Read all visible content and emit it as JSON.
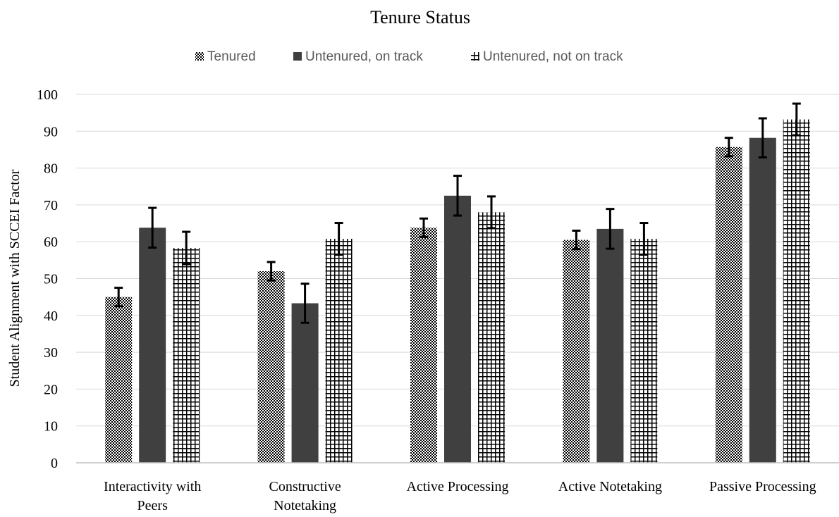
{
  "chart_data": {
    "type": "bar",
    "title": "Tenure Status",
    "xlabel": "",
    "ylabel": "Student Alignment with SCCEI Factor",
    "ylim": [
      0,
      100
    ],
    "yticks": [
      0,
      10,
      20,
      30,
      40,
      50,
      60,
      70,
      80,
      90,
      100
    ],
    "grid": true,
    "legend_position": "top",
    "categories": [
      [
        "Interactivity with",
        "Peers"
      ],
      [
        "Constructive",
        "Notetaking"
      ],
      [
        "Active Processing"
      ],
      [
        "Active Notetaking"
      ],
      [
        "Passive Processing"
      ]
    ],
    "series": [
      {
        "name": "Tenured",
        "pattern": "checker",
        "color": "#000000",
        "values": [
          45,
          52,
          63.8,
          60.5,
          85.7
        ],
        "error": [
          2.5,
          2.5,
          2.5,
          2.5,
          2.5
        ]
      },
      {
        "name": "Untenured, on track",
        "pattern": "solid",
        "color": "#404040",
        "values": [
          63.8,
          43.3,
          72.5,
          63.5,
          88.2
        ],
        "error": [
          5.4,
          5.3,
          5.4,
          5.4,
          5.3
        ]
      },
      {
        "name": "Untenured, not on track",
        "pattern": "grid",
        "color": "#000000",
        "values": [
          58.3,
          60.8,
          68,
          60.8,
          93.2
        ],
        "error": [
          4.4,
          4.3,
          4.3,
          4.3,
          4.3
        ]
      }
    ]
  }
}
